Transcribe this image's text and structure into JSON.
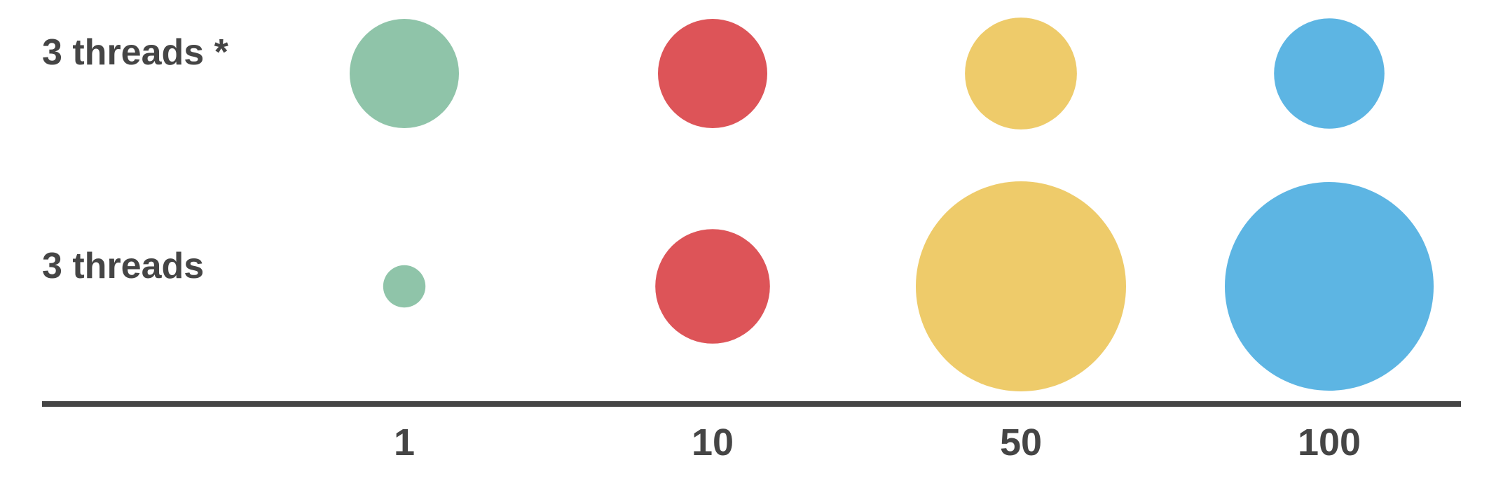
{
  "chart_data": {
    "type": "bubble",
    "categories": [
      "1",
      "10",
      "50",
      "100"
    ],
    "series": [
      {
        "name": "3 threads *",
        "values": [
          1,
          1,
          1.05,
          1.02
        ]
      },
      {
        "name": "3 threads",
        "values": [
          0.15,
          1.1,
          3.7,
          3.65
        ]
      }
    ],
    "colors": [
      "#8fc4a9",
      "#dd5458",
      "#eecb6a",
      "#5db5e3"
    ],
    "axis_line_color": "#454545",
    "grid": false
  }
}
